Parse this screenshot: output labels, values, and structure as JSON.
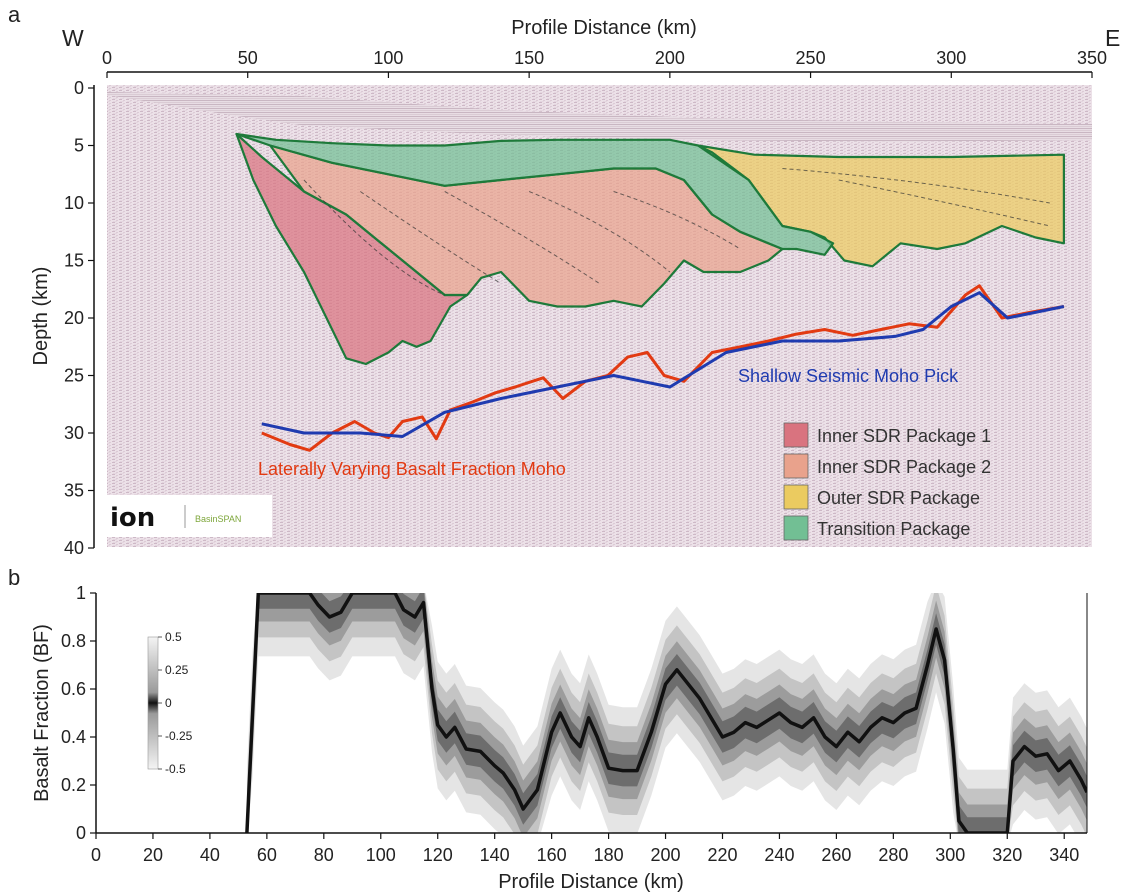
{
  "panels": {
    "a": "a",
    "b": "b"
  },
  "panel_a": {
    "orientation_west": "W",
    "orientation_east": "E",
    "top_xlabel": "Profile Distance (km)",
    "ylabel": "Depth (km)",
    "x_ticks": [
      "0",
      "50",
      "100",
      "150",
      "200",
      "250",
      "300",
      "350"
    ],
    "y_ticks": [
      "0",
      "5",
      "10",
      "15",
      "20",
      "25",
      "30",
      "35",
      "40"
    ],
    "legend": [
      {
        "label": "Inner SDR Package 1",
        "color": "#d9737f"
      },
      {
        "label": "Inner SDR Package 2",
        "color": "#e9a28c"
      },
      {
        "label": "Outer SDR Package",
        "color": "#ebcb60"
      },
      {
        "label": "Transition Package",
        "color": "#72bf94"
      }
    ],
    "annotations": {
      "shallow_moho": "Shallow Seismic Moho Pick",
      "bf_moho": "Laterally Varying Basalt Fraction Moho"
    },
    "logo": {
      "text1": "ion",
      "text2": "BasinSPAN"
    },
    "colors": {
      "red_line": "#e23a12",
      "blue_line": "#1f3bb0",
      "package_outline": "#1e7a3a"
    }
  },
  "panel_b": {
    "xlabel": "Profile Distance (km)",
    "ylabel": "Basalt Fraction (BF)",
    "x_ticks": [
      "0",
      "20",
      "40",
      "60",
      "80",
      "100",
      "120",
      "140",
      "160",
      "180",
      "200",
      "220",
      "240",
      "260",
      "280",
      "300",
      "320",
      "340"
    ],
    "y_ticks": [
      "0",
      "0.2",
      "0.4",
      "0.6",
      "0.8",
      "1"
    ],
    "colorbar_ticks": [
      "0.5",
      "0.25",
      "0",
      "-0.25",
      "-0.5"
    ]
  },
  "chart_data": [
    {
      "type": "area",
      "subject": "seismic depth section with SDR packages",
      "xlabel": "Profile Distance (km)",
      "ylabel": "Depth (km)",
      "xlim": [
        0,
        350
      ],
      "ylim": [
        0,
        40
      ],
      "y_inverted": true,
      "series": [
        {
          "name": "Inner SDR Package 1",
          "polygon": [
            [
              46,
              4
            ],
            [
              55,
              6
            ],
            [
              70,
              9
            ],
            [
              85,
              11
            ],
            [
              100,
              14
            ],
            [
              110,
              16
            ],
            [
              120,
              18
            ],
            [
              128,
              18
            ],
            [
              122,
              19
            ],
            [
              115,
              22
            ],
            [
              110,
              22.5
            ],
            [
              105,
              22
            ],
            [
              100,
              23
            ],
            [
              92,
              24
            ],
            [
              85,
              23.5
            ],
            [
              78,
              20
            ],
            [
              70,
              16
            ],
            [
              60,
              12
            ],
            [
              52,
              8
            ]
          ]
        },
        {
          "name": "Inner SDR Package 2",
          "polygon": [
            [
              58,
              5
            ],
            [
              80,
              6.5
            ],
            [
              100,
              7.5
            ],
            [
              120,
              8.5
            ],
            [
              140,
              8
            ],
            [
              160,
              7.5
            ],
            [
              180,
              7
            ],
            [
              195,
              7
            ],
            [
              205,
              8
            ],
            [
              215,
              11
            ],
            [
              225,
              12.5
            ],
            [
              240,
              14
            ],
            [
              235,
              15
            ],
            [
              225,
              16
            ],
            [
              212,
              16
            ],
            [
              205,
              15
            ],
            [
              198,
              17
            ],
            [
              190,
              19
            ],
            [
              180,
              18.5
            ],
            [
              170,
              19
            ],
            [
              160,
              19
            ],
            [
              150,
              18.5
            ],
            [
              140,
              16
            ],
            [
              133,
              16.5
            ],
            [
              128,
              18
            ],
            [
              120,
              18
            ],
            [
              110,
              16
            ],
            [
              100,
              14
            ],
            [
              85,
              11
            ],
            [
              70,
              9
            ]
          ]
        },
        {
          "name": "Outer SDR Package",
          "polygon": [
            [
              210,
              5
            ],
            [
              230,
              5.8
            ],
            [
              260,
              6
            ],
            [
              290,
              6
            ],
            [
              300,
              6
            ],
            [
              340,
              5.8
            ],
            [
              340,
              13.5
            ],
            [
              330,
              13
            ],
            [
              318,
              12
            ],
            [
              305,
              13.5
            ],
            [
              295,
              14
            ],
            [
              282,
              13.5
            ],
            [
              272,
              15.5
            ],
            [
              262,
              15
            ],
            [
              255,
              13
            ],
            [
              250,
              12.5
            ],
            [
              240,
              12
            ],
            [
              228,
              8
            ],
            [
              215,
              5.6
            ]
          ]
        },
        {
          "name": "Transition Package",
          "polygon": [
            [
              46,
              4
            ],
            [
              60,
              4.5
            ],
            [
              80,
              4.8
            ],
            [
              100,
              5
            ],
            [
              120,
              5
            ],
            [
              140,
              4.6
            ],
            [
              160,
              4.5
            ],
            [
              180,
              4.5
            ],
            [
              200,
              4.5
            ],
            [
              210,
              5
            ],
            [
              228,
              8
            ],
            [
              240,
              12
            ],
            [
              250,
              12.5
            ],
            [
              258,
              13.5
            ],
            [
              255,
              14.5
            ],
            [
              245,
              14
            ],
            [
              240,
              14
            ],
            [
              225,
              12.5
            ],
            [
              215,
              11
            ],
            [
              205,
              8
            ],
            [
              195,
              7
            ],
            [
              180,
              7
            ],
            [
              160,
              7.5
            ],
            [
              140,
              8
            ],
            [
              120,
              8.5
            ],
            [
              100,
              7.5
            ],
            [
              80,
              6.5
            ],
            [
              58,
              5
            ]
          ]
        }
      ],
      "lines": [
        {
          "name": "Shallow Seismic Moho Pick",
          "x": [
            55,
            70,
            90,
            105,
            120,
            140,
            160,
            180,
            200,
            220,
            240,
            260,
            280,
            290,
            300,
            310,
            320,
            340
          ],
          "y": [
            29.2,
            30,
            30,
            30.3,
            28.2,
            27,
            26,
            25,
            26,
            23,
            22,
            22,
            21.6,
            21,
            19,
            17.8,
            20,
            19
          ]
        },
        {
          "name": "Laterally Varying Basalt Fraction Moho",
          "x": [
            55,
            65,
            72,
            80,
            88,
            95,
            100,
            105,
            112,
            117,
            122,
            130,
            138,
            145,
            155,
            162,
            170,
            178,
            185,
            192,
            198,
            205,
            215,
            225,
            235,
            245,
            255,
            265,
            275,
            285,
            295,
            305,
            310,
            318,
            328,
            340
          ],
          "y": [
            30,
            31,
            31.5,
            30,
            29,
            30,
            30.4,
            29,
            28.6,
            30.5,
            28,
            27.3,
            26.5,
            26,
            25.2,
            27,
            25.5,
            25,
            23.4,
            23,
            25,
            25.5,
            23,
            22.5,
            22,
            21.4,
            21,
            21.5,
            21,
            20.5,
            20.8,
            18,
            17.2,
            20,
            19.5,
            19
          ]
        }
      ]
    },
    {
      "type": "line",
      "xlabel": "Profile Distance (km)",
      "ylabel": "Basalt Fraction (BF)",
      "xlim": [
        0,
        348
      ],
      "ylim": [
        0,
        1
      ],
      "colorbar": {
        "ticks": [
          0.5,
          0.25,
          0,
          -0.25,
          -0.5
        ]
      },
      "series": [
        {
          "x": [
            53,
            55,
            57,
            60,
            65,
            70,
            75,
            78,
            82,
            86,
            90,
            95,
            100,
            105,
            108,
            112,
            115,
            118,
            120,
            123,
            126,
            130,
            135,
            140,
            143,
            147,
            150,
            155,
            160,
            163,
            167,
            170,
            173,
            176,
            180,
            185,
            190,
            195,
            200,
            204,
            208,
            212,
            216,
            220,
            224,
            228,
            232,
            236,
            240,
            244,
            248,
            252,
            256,
            260,
            264,
            268,
            272,
            276,
            280,
            284,
            288,
            292,
            295,
            298,
            301,
            303,
            306,
            309,
            320,
            322,
            326,
            330,
            334,
            338,
            342,
            346,
            348
          ],
          "y": [
            0,
            0.5,
            1,
            1,
            1,
            1,
            1,
            0.95,
            0.9,
            0.92,
            1,
            1,
            1,
            1,
            0.93,
            0.9,
            0.96,
            0.6,
            0.45,
            0.4,
            0.44,
            0.35,
            0.34,
            0.28,
            0.25,
            0.18,
            0.1,
            0.18,
            0.42,
            0.5,
            0.4,
            0.36,
            0.48,
            0.4,
            0.27,
            0.26,
            0.26,
            0.42,
            0.62,
            0.68,
            0.62,
            0.56,
            0.48,
            0.4,
            0.42,
            0.46,
            0.44,
            0.47,
            0.5,
            0.46,
            0.44,
            0.48,
            0.4,
            0.36,
            0.42,
            0.38,
            0.44,
            0.48,
            0.46,
            0.5,
            0.52,
            0.7,
            0.85,
            0.72,
            0.35,
            0.05,
            0,
            0,
            0,
            0.3,
            0.36,
            0.32,
            0.33,
            0.26,
            0.3,
            0.22,
            0.17
          ],
          "band": 0.12
        }
      ]
    }
  ]
}
